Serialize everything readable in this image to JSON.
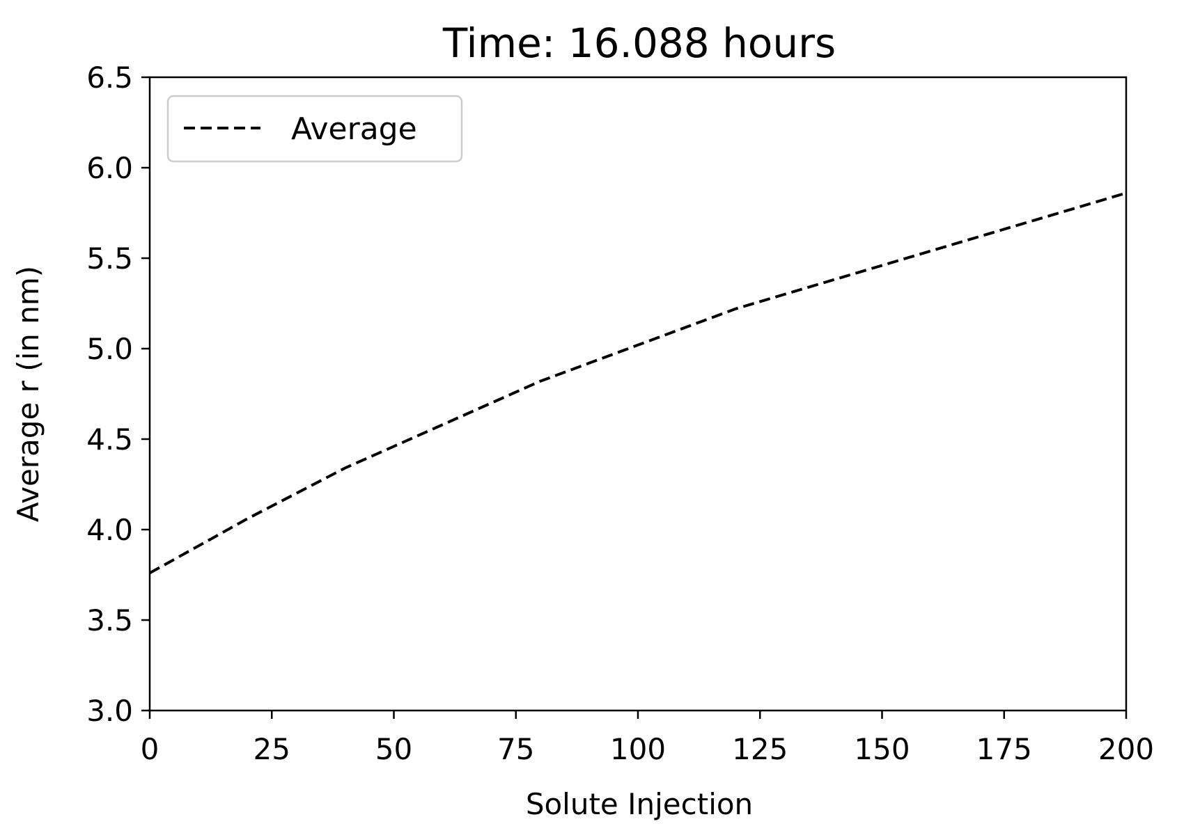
{
  "chart_data": {
    "type": "line",
    "title": "Time: 16.088 hours",
    "xlabel": "Solute Injection",
    "ylabel": "Average r (in nm)",
    "xlim": [
      0,
      200
    ],
    "ylim": [
      3.0,
      6.5
    ],
    "xticks": [
      0,
      25,
      50,
      75,
      100,
      125,
      150,
      175,
      200
    ],
    "xtick_labels": [
      "0",
      "25",
      "50",
      "75",
      "100",
      "125",
      "150",
      "175",
      "200"
    ],
    "yticks": [
      3.0,
      3.5,
      4.0,
      4.5,
      5.0,
      5.5,
      6.0,
      6.5
    ],
    "ytick_labels": [
      "3.0",
      "3.5",
      "4.0",
      "4.5",
      "5.0",
      "5.5",
      "6.0",
      "6.5"
    ],
    "grid": false,
    "legend": {
      "location": "top-left",
      "entries": [
        "Average"
      ]
    },
    "series": [
      {
        "name": "Average",
        "color": "#000000",
        "line_style": "dashed",
        "x": [
          0,
          10,
          20,
          30,
          40,
          50,
          60,
          70,
          80,
          90,
          100,
          110,
          120,
          130,
          140,
          150,
          160,
          170,
          180,
          190,
          200
        ],
        "y": [
          3.76,
          3.91,
          4.06,
          4.2,
          4.34,
          4.46,
          4.58,
          4.7,
          4.82,
          4.92,
          5.02,
          5.12,
          5.22,
          5.3,
          5.38,
          5.46,
          5.54,
          5.62,
          5.7,
          5.78,
          5.86
        ]
      }
    ]
  }
}
